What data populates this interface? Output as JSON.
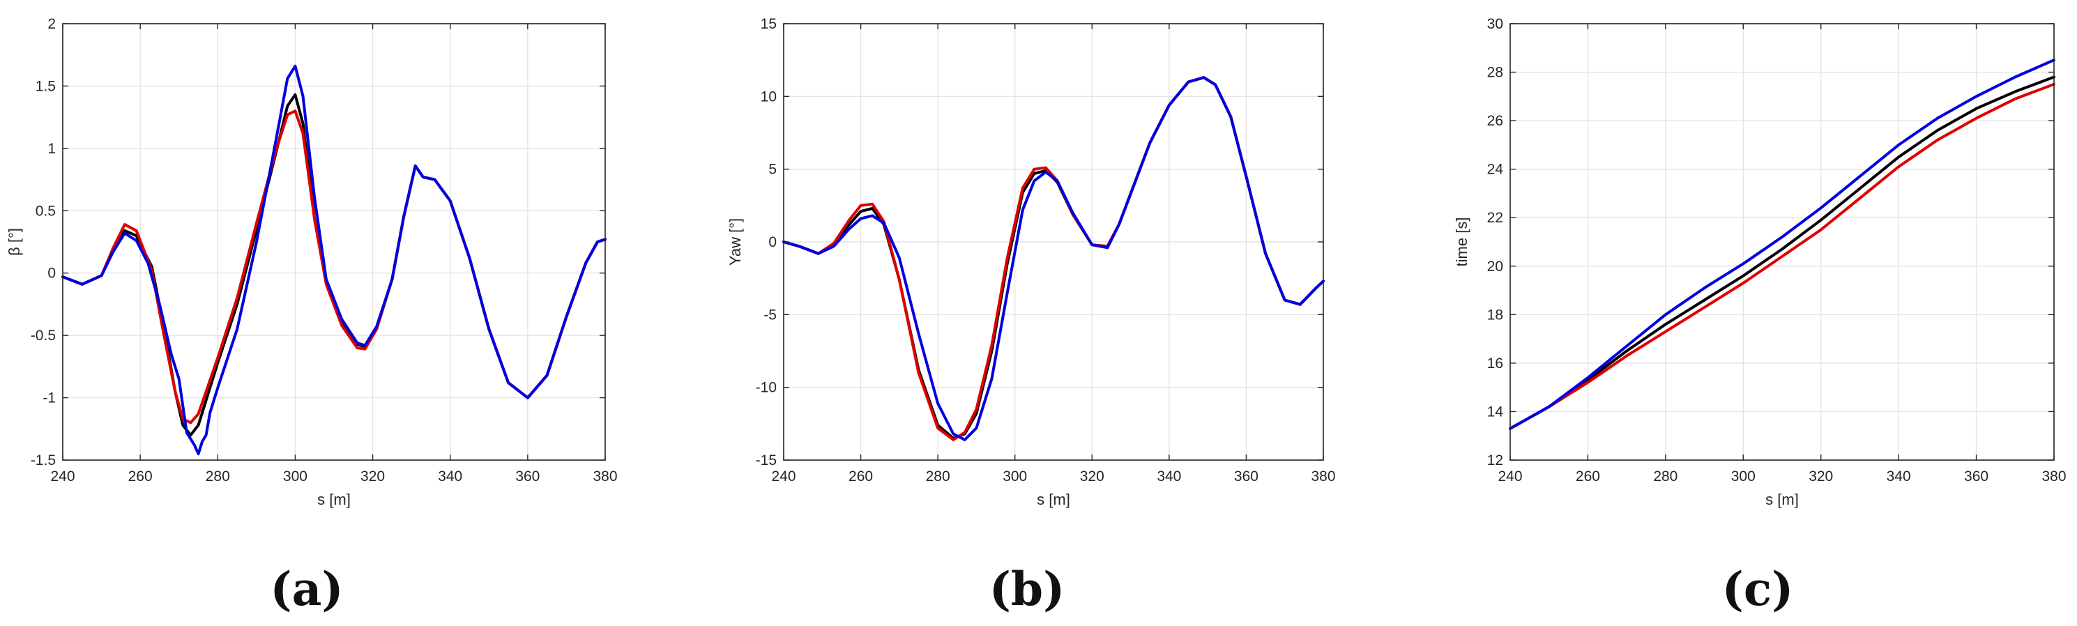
{
  "chart_data": [
    {
      "type": "line",
      "panel": "(a)",
      "xlabel": "s [m]",
      "ylabel": "β [°]",
      "xlim": [
        240,
        380
      ],
      "ylim": [
        -1.5,
        2
      ],
      "xticks": [
        240,
        260,
        280,
        300,
        320,
        340,
        360,
        380
      ],
      "yticks": [
        -1.5,
        -1,
        -0.5,
        0,
        0.5,
        1,
        1.5,
        2
      ],
      "ytick_labels": [
        "-1.5",
        "-1",
        "-0.5",
        "0",
        "0.5",
        "1",
        "1.5",
        "2"
      ],
      "grid": true,
      "series": [
        {
          "color": "#000000",
          "x": [
            240,
            245,
            250,
            253,
            256,
            259,
            263,
            266,
            269,
            271,
            273,
            275,
            277,
            280,
            285,
            290,
            295,
            298,
            300,
            302,
            305,
            308,
            312,
            316,
            318,
            321,
            325,
            328,
            331,
            333,
            336,
            340,
            345,
            350,
            355,
            360,
            365,
            370,
            375,
            378,
            380
          ],
          "y": [
            -0.03,
            -0.09,
            -0.02,
            0.18,
            0.34,
            0.3,
            0.05,
            -0.42,
            -0.95,
            -1.22,
            -1.3,
            -1.22,
            -1.02,
            -0.72,
            -0.25,
            0.35,
            0.96,
            1.34,
            1.43,
            1.2,
            0.43,
            -0.08,
            -0.4,
            -0.57,
            -0.59,
            -0.45,
            -0.05,
            0.45,
            0.86,
            0.77,
            0.75,
            0.58,
            0.12,
            -0.45,
            -0.88,
            -1.0,
            -0.82,
            -0.35,
            0.08,
            0.25,
            0.27
          ]
        },
        {
          "color": "#e00000",
          "x": [
            240,
            245,
            250,
            253,
            256,
            259,
            263,
            266,
            269,
            271,
            273,
            275,
            277,
            280,
            285,
            290,
            295,
            298,
            300,
            302,
            305,
            308,
            312,
            316,
            318,
            321,
            325,
            328,
            331,
            333,
            336,
            340,
            345,
            350,
            355,
            360,
            365,
            370,
            375,
            378,
            380
          ],
          "y": [
            -0.03,
            -0.09,
            -0.02,
            0.2,
            0.39,
            0.34,
            0.02,
            -0.48,
            -0.95,
            -1.17,
            -1.2,
            -1.13,
            -0.95,
            -0.68,
            -0.2,
            0.4,
            0.98,
            1.27,
            1.3,
            1.12,
            0.43,
            -0.09,
            -0.42,
            -0.6,
            -0.61,
            -0.45,
            -0.05,
            0.45,
            0.86,
            0.77,
            0.75,
            0.58,
            0.12,
            -0.45,
            -0.88,
            -1.0,
            -0.82,
            -0.35,
            0.08,
            0.25,
            0.27
          ]
        },
        {
          "color": "#0000e0",
          "x": [
            240,
            245,
            250,
            253,
            256,
            259,
            262,
            265,
            268,
            270,
            272,
            273,
            274,
            275,
            276,
            277,
            278,
            280,
            285,
            290,
            295,
            298,
            300,
            302,
            305,
            308,
            312,
            316,
            318,
            321,
            325,
            328,
            331,
            333,
            336,
            340,
            345,
            350,
            355,
            360,
            365,
            370,
            375,
            378,
            380
          ],
          "y": [
            -0.03,
            -0.09,
            -0.02,
            0.17,
            0.32,
            0.26,
            0.08,
            -0.25,
            -0.65,
            -0.85,
            -1.28,
            -1.33,
            -1.38,
            -1.45,
            -1.35,
            -1.3,
            -1.12,
            -0.92,
            -0.45,
            0.25,
            1.06,
            1.56,
            1.66,
            1.42,
            0.6,
            -0.05,
            -0.37,
            -0.56,
            -0.58,
            -0.43,
            -0.05,
            0.45,
            0.86,
            0.77,
            0.75,
            0.58,
            0.12,
            -0.45,
            -0.88,
            -1.0,
            -0.82,
            -0.35,
            0.08,
            0.25,
            0.27
          ]
        }
      ]
    },
    {
      "type": "line",
      "panel": "(b)",
      "xlabel": "s [m]",
      "ylabel": "Yaw [°]",
      "xlim": [
        240,
        380
      ],
      "ylim": [
        -15,
        15
      ],
      "xticks": [
        240,
        260,
        280,
        300,
        320,
        340,
        360,
        380
      ],
      "yticks": [
        -15,
        -10,
        -5,
        0,
        5,
        10,
        15
      ],
      "ytick_labels": [
        "-15",
        "-10",
        "-5",
        "0",
        "5",
        "10",
        "15"
      ],
      "grid": true,
      "series": [
        {
          "color": "#000000",
          "x": [
            240,
            244,
            249,
            253,
            257,
            260,
            263,
            266,
            270,
            275,
            280,
            284,
            287,
            290,
            294,
            298,
            302,
            305,
            308,
            311,
            315,
            320,
            324,
            327,
            331,
            335,
            340,
            345,
            349,
            352,
            356,
            360,
            365,
            370,
            374,
            378,
            380
          ],
          "y": [
            0,
            -0.3,
            -0.8,
            -0.2,
            1.2,
            2.1,
            2.3,
            1.2,
            -2.6,
            -8.8,
            -12.6,
            -13.5,
            -13.2,
            -11.8,
            -7.5,
            -1.5,
            3.4,
            4.7,
            4.9,
            4.1,
            1.9,
            -0.2,
            -0.3,
            1.2,
            4.0,
            6.8,
            9.4,
            11.0,
            11.3,
            10.8,
            8.6,
            4.5,
            -0.8,
            -4.0,
            -4.3,
            -3.2,
            -2.7
          ]
        },
        {
          "color": "#e00000",
          "x": [
            240,
            244,
            249,
            253,
            257,
            260,
            263,
            266,
            270,
            275,
            280,
            284,
            287,
            290,
            294,
            298,
            302,
            305,
            308,
            311,
            315,
            320,
            324,
            327,
            331,
            335,
            340,
            345,
            349,
            352,
            356,
            360,
            365,
            370,
            374,
            378,
            380
          ],
          "y": [
            0,
            -0.3,
            -0.8,
            -0.1,
            1.5,
            2.5,
            2.6,
            1.4,
            -2.6,
            -9.0,
            -12.8,
            -13.6,
            -13.1,
            -11.5,
            -7.1,
            -1.1,
            3.7,
            5.0,
            5.1,
            4.2,
            1.9,
            -0.2,
            -0.3,
            1.2,
            4.0,
            6.8,
            9.4,
            11.0,
            11.3,
            10.8,
            8.6,
            4.5,
            -0.8,
            -4.0,
            -4.3,
            -3.2,
            -2.7
          ]
        },
        {
          "color": "#0000e0",
          "x": [
            240,
            244,
            249,
            253,
            257,
            260,
            263,
            266,
            270,
            275,
            280,
            284,
            287,
            290,
            294,
            298,
            302,
            305,
            308,
            311,
            315,
            320,
            324,
            327,
            331,
            335,
            340,
            345,
            349,
            352,
            356,
            360,
            365,
            370,
            374,
            378,
            380
          ],
          "y": [
            0,
            -0.3,
            -0.8,
            -0.3,
            0.9,
            1.6,
            1.8,
            1.3,
            -1.1,
            -6.3,
            -11.1,
            -13.2,
            -13.6,
            -12.8,
            -9.4,
            -3.5,
            2.2,
            4.2,
            4.8,
            4.2,
            2.0,
            -0.2,
            -0.4,
            1.2,
            4.0,
            6.8,
            9.4,
            11.0,
            11.3,
            10.8,
            8.6,
            4.5,
            -0.8,
            -4.0,
            -4.3,
            -3.2,
            -2.7
          ]
        }
      ]
    },
    {
      "type": "line",
      "panel": "(c)",
      "xlabel": "s [m]",
      "ylabel": "time [s]",
      "xlim": [
        240,
        380
      ],
      "ylim": [
        12,
        30
      ],
      "xticks": [
        240,
        260,
        280,
        300,
        320,
        340,
        360,
        380
      ],
      "yticks": [
        12,
        14,
        16,
        18,
        20,
        22,
        24,
        26,
        28,
        30
      ],
      "ytick_labels": [
        "12",
        "14",
        "16",
        "18",
        "20",
        "22",
        "24",
        "26",
        "28",
        "30"
      ],
      "grid": true,
      "series": [
        {
          "color": "#000000",
          "x": [
            240,
            250,
            260,
            270,
            280,
            290,
            300,
            310,
            320,
            330,
            340,
            350,
            360,
            370,
            380
          ],
          "y": [
            13.3,
            14.2,
            15.3,
            16.5,
            17.6,
            18.6,
            19.6,
            20.7,
            21.9,
            23.2,
            24.5,
            25.6,
            26.5,
            27.2,
            27.8
          ]
        },
        {
          "color": "#e00000",
          "x": [
            240,
            250,
            260,
            270,
            280,
            290,
            300,
            310,
            320,
            330,
            340,
            350,
            360,
            370,
            380
          ],
          "y": [
            13.3,
            14.2,
            15.2,
            16.3,
            17.3,
            18.3,
            19.3,
            20.4,
            21.5,
            22.8,
            24.1,
            25.2,
            26.1,
            26.9,
            27.5
          ]
        },
        {
          "color": "#0000e0",
          "x": [
            240,
            250,
            260,
            270,
            280,
            290,
            300,
            310,
            320,
            330,
            340,
            350,
            360,
            370,
            380
          ],
          "y": [
            13.3,
            14.2,
            15.4,
            16.7,
            18.0,
            19.1,
            20.1,
            21.2,
            22.4,
            23.7,
            25.0,
            26.1,
            27.0,
            27.8,
            28.5
          ]
        }
      ]
    }
  ]
}
